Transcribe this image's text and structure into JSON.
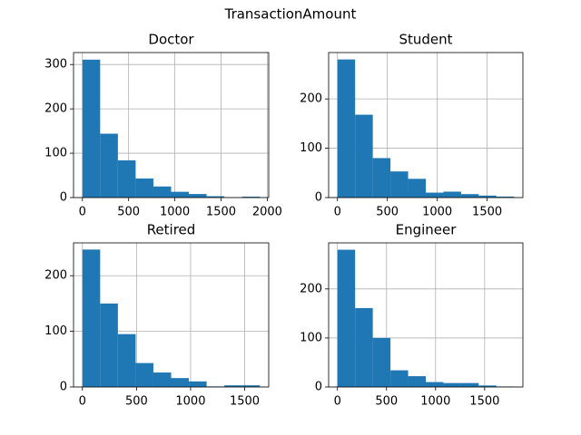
{
  "title": "TransactionAmount",
  "chart_data": [
    {
      "type": "histogram",
      "title": "Doctor",
      "bins": [
        0,
        192,
        384,
        576,
        768,
        960,
        1152,
        1344,
        1536,
        1728,
        1920
      ],
      "values": [
        311,
        144,
        84,
        43,
        25,
        13,
        8,
        3,
        0,
        2
      ],
      "color": "#1f77b4",
      "xlim": [
        -96,
        2016
      ],
      "ylim": [
        0,
        327
      ],
      "xticks": [
        0,
        500,
        1000,
        1500,
        2000
      ],
      "yticks": [
        0,
        100,
        200,
        300
      ],
      "grid": true
    },
    {
      "type": "histogram",
      "title": "Student",
      "bins": [
        0,
        177,
        354,
        531,
        708,
        885,
        1062,
        1239,
        1416,
        1593,
        1770
      ],
      "values": [
        280,
        168,
        80,
        53,
        38,
        10,
        12,
        7,
        4,
        2
      ],
      "color": "#1f77b4",
      "xlim": [
        -88.5,
        1858.5
      ],
      "ylim": [
        0,
        294
      ],
      "xticks": [
        0,
        500,
        1000,
        1500
      ],
      "yticks": [
        0,
        100,
        200
      ],
      "grid": true
    },
    {
      "type": "histogram",
      "title": "Retired",
      "bins": [
        0,
        164,
        328,
        492,
        656,
        820,
        984,
        1148,
        1312,
        1476,
        1640
      ],
      "values": [
        247,
        150,
        95,
        43,
        26,
        16,
        10,
        1,
        3,
        3
      ],
      "color": "#1f77b4",
      "xlim": [
        -82,
        1722
      ],
      "ylim": [
        0,
        259
      ],
      "xticks": [
        0,
        500,
        1000,
        1500
      ],
      "yticks": [
        0,
        100,
        200
      ],
      "grid": true
    },
    {
      "type": "histogram",
      "title": "Engineer",
      "bins": [
        0,
        180,
        360,
        540,
        720,
        900,
        1080,
        1260,
        1440,
        1620,
        1800
      ],
      "values": [
        280,
        161,
        100,
        34,
        22,
        10,
        8,
        8,
        3,
        1
      ],
      "color": "#1f77b4",
      "xlim": [
        -90,
        1890
      ],
      "ylim": [
        0,
        294
      ],
      "xticks": [
        0,
        500,
        1000,
        1500
      ],
      "yticks": [
        0,
        100,
        200
      ],
      "grid": true
    }
  ]
}
